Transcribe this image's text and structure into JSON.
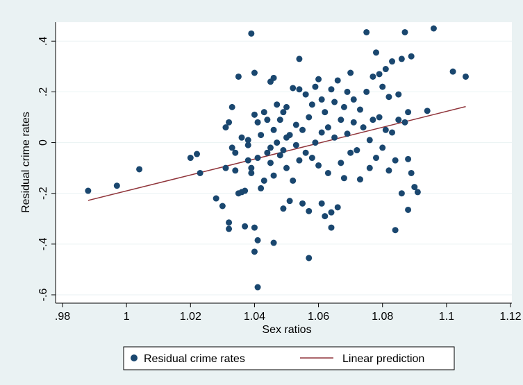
{
  "chart_data": {
    "type": "scatter",
    "xlabel": "Sex ratios",
    "ylabel": "Residual crime rates",
    "xlim": [
      0.98,
      1.12
    ],
    "ylim": [
      -0.6,
      0.45
    ],
    "xticks": [
      0.98,
      1.0,
      1.02,
      1.04,
      1.06,
      1.08,
      1.1,
      1.12
    ],
    "xtick_labels": [
      ".98",
      "1",
      "1.02",
      "1.04",
      "1.06",
      "1.08",
      "1.1",
      "1.12"
    ],
    "yticks": [
      -0.6,
      -0.4,
      -0.2,
      0,
      0.2,
      0.4
    ],
    "ytick_labels": [
      "-.6",
      "-.4",
      "-.2",
      "0",
      ".2",
      ".4"
    ],
    "grid": "horizontal",
    "legend_position": "bottom",
    "colors": {
      "points": "#1a476f",
      "line": "#90353b",
      "plot_bg": "#ffffff",
      "outer_bg": "#eaf2f3",
      "grid": "#eaf2f3"
    },
    "series": [
      {
        "name": "Residual crime rates",
        "kind": "scatter",
        "points": [
          [
            0.988,
            -0.19
          ],
          [
            0.997,
            -0.17
          ],
          [
            1.004,
            -0.105
          ],
          [
            1.02,
            -0.06
          ],
          [
            1.022,
            -0.045
          ],
          [
            1.023,
            -0.12
          ],
          [
            1.028,
            -0.22
          ],
          [
            1.03,
            -0.25
          ],
          [
            1.031,
            -0.1
          ],
          [
            1.031,
            0.06
          ],
          [
            1.032,
            0.08
          ],
          [
            1.032,
            -0.315
          ],
          [
            1.032,
            -0.34
          ],
          [
            1.033,
            -0.02
          ],
          [
            1.033,
            0.14
          ],
          [
            1.034,
            -0.11
          ],
          [
            1.034,
            -0.04
          ],
          [
            1.035,
            0.26
          ],
          [
            1.035,
            -0.2
          ],
          [
            1.036,
            -0.195
          ],
          [
            1.036,
            0.02
          ],
          [
            1.037,
            -0.33
          ],
          [
            1.037,
            -0.19
          ],
          [
            1.038,
            -0.01
          ],
          [
            1.038,
            0.01
          ],
          [
            1.038,
            -0.07
          ],
          [
            1.039,
            0.43
          ],
          [
            1.039,
            -0.1
          ],
          [
            1.039,
            -0.12
          ],
          [
            1.04,
            -0.43
          ],
          [
            1.04,
            -0.335
          ],
          [
            1.04,
            0.275
          ],
          [
            1.04,
            0.11
          ],
          [
            1.041,
            -0.57
          ],
          [
            1.041,
            -0.385
          ],
          [
            1.041,
            0.08
          ],
          [
            1.041,
            -0.06
          ],
          [
            1.042,
            -0.18
          ],
          [
            1.042,
            0.03
          ],
          [
            1.043,
            0.12
          ],
          [
            1.043,
            -0.15
          ],
          [
            1.044,
            -0.04
          ],
          [
            1.044,
            0.09
          ],
          [
            1.045,
            -0.02
          ],
          [
            1.045,
            0.24
          ],
          [
            1.045,
            -0.08
          ],
          [
            1.046,
            -0.395
          ],
          [
            1.046,
            0.255
          ],
          [
            1.046,
            0.05
          ],
          [
            1.046,
            -0.13
          ],
          [
            1.047,
            0.15
          ],
          [
            1.047,
            0.0
          ],
          [
            1.048,
            -0.05
          ],
          [
            1.048,
            0.09
          ],
          [
            1.049,
            -0.26
          ],
          [
            1.049,
            0.12
          ],
          [
            1.049,
            -0.03
          ],
          [
            1.05,
            0.02
          ],
          [
            1.05,
            -0.1
          ],
          [
            1.05,
            0.14
          ],
          [
            1.051,
            -0.23
          ],
          [
            1.051,
            0.03
          ],
          [
            1.052,
            0.215
          ],
          [
            1.052,
            -0.15
          ],
          [
            1.053,
            0.07
          ],
          [
            1.053,
            -0.01
          ],
          [
            1.054,
            0.33
          ],
          [
            1.054,
            -0.07
          ],
          [
            1.054,
            0.21
          ],
          [
            1.055,
            -0.24
          ],
          [
            1.055,
            0.05
          ],
          [
            1.056,
            0.19
          ],
          [
            1.056,
            -0.04
          ],
          [
            1.057,
            -0.27
          ],
          [
            1.057,
            -0.455
          ],
          [
            1.057,
            0.1
          ],
          [
            1.058,
            0.15
          ],
          [
            1.058,
            -0.06
          ],
          [
            1.059,
            0.22
          ],
          [
            1.059,
            0.0
          ],
          [
            1.06,
            0.25
          ],
          [
            1.06,
            -0.09
          ],
          [
            1.061,
            -0.24
          ],
          [
            1.061,
            0.17
          ],
          [
            1.061,
            0.04
          ],
          [
            1.062,
            -0.29
          ],
          [
            1.062,
            0.12
          ],
          [
            1.063,
            -0.12
          ],
          [
            1.063,
            0.06
          ],
          [
            1.064,
            -0.275
          ],
          [
            1.064,
            0.21
          ],
          [
            1.064,
            -0.335
          ],
          [
            1.065,
            0.02
          ],
          [
            1.065,
            0.16
          ],
          [
            1.066,
            -0.255
          ],
          [
            1.066,
            0.245
          ],
          [
            1.067,
            -0.08
          ],
          [
            1.067,
            0.09
          ],
          [
            1.068,
            0.14
          ],
          [
            1.068,
            -0.14
          ],
          [
            1.069,
            0.035
          ],
          [
            1.069,
            0.2
          ],
          [
            1.07,
            0.275
          ],
          [
            1.07,
            -0.04
          ],
          [
            1.071,
            0.08
          ],
          [
            1.071,
            0.17
          ],
          [
            1.072,
            -0.03
          ],
          [
            1.073,
            0.13
          ],
          [
            1.073,
            -0.145
          ],
          [
            1.074,
            0.06
          ],
          [
            1.075,
            0.435
          ],
          [
            1.075,
            0.2
          ],
          [
            1.076,
            -0.1
          ],
          [
            1.076,
            0.01
          ],
          [
            1.077,
            0.26
          ],
          [
            1.077,
            0.09
          ],
          [
            1.078,
            0.355
          ],
          [
            1.078,
            -0.06
          ],
          [
            1.079,
            0.1
          ],
          [
            1.079,
            0.27
          ],
          [
            1.08,
            0.22
          ],
          [
            1.08,
            -0.02
          ],
          [
            1.081,
            0.29
          ],
          [
            1.081,
            0.05
          ],
          [
            1.082,
            -0.11
          ],
          [
            1.082,
            0.18
          ],
          [
            1.083,
            0.32
          ],
          [
            1.083,
            0.04
          ],
          [
            1.084,
            -0.345
          ],
          [
            1.084,
            -0.07
          ],
          [
            1.085,
            0.09
          ],
          [
            1.085,
            0.19
          ],
          [
            1.086,
            0.33
          ],
          [
            1.086,
            -0.2
          ],
          [
            1.087,
            0.435
          ],
          [
            1.087,
            0.08
          ],
          [
            1.088,
            -0.265
          ],
          [
            1.088,
            -0.065
          ],
          [
            1.088,
            0.12
          ],
          [
            1.089,
            0.34
          ],
          [
            1.089,
            -0.12
          ],
          [
            1.09,
            -0.175
          ],
          [
            1.091,
            -0.195
          ],
          [
            1.094,
            0.125
          ],
          [
            1.096,
            0.45
          ],
          [
            1.102,
            0.28
          ],
          [
            1.106,
            0.26
          ]
        ]
      },
      {
        "name": "Linear prediction",
        "kind": "line",
        "points": [
          [
            0.988,
            -0.228
          ],
          [
            1.106,
            0.142
          ]
        ]
      }
    ]
  },
  "legend": {
    "items": [
      {
        "label": "Residual crime rates"
      },
      {
        "label": "Linear prediction"
      }
    ]
  }
}
